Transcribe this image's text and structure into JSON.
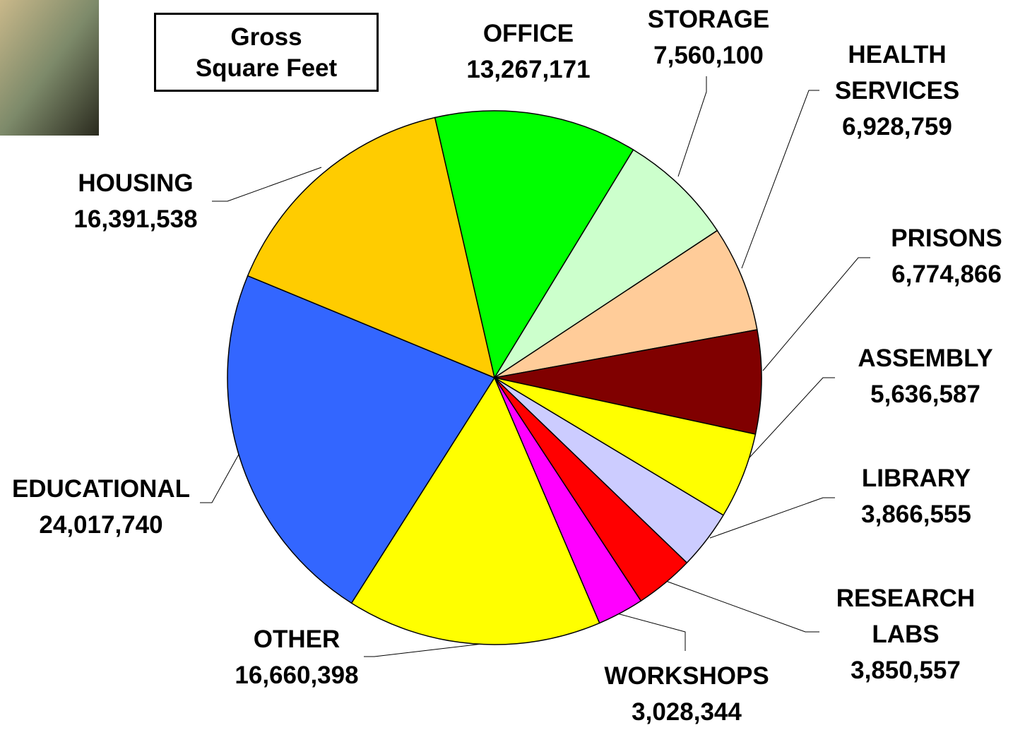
{
  "chart_data": {
    "type": "pie",
    "title": "Gross Square Feet",
    "categories": [
      "OFFICE",
      "STORAGE",
      "HEALTH SERVICES",
      "PRISONS",
      "ASSEMBLY",
      "LIBRARY",
      "RESEARCH LABS",
      "WORKSHOPS",
      "OTHER",
      "EDUCATIONAL",
      "HOUSING"
    ],
    "values": [
      13267171,
      7560100,
      6928759,
      6774866,
      5636587,
      3866555,
      3850557,
      3028344,
      16660398,
      24017740,
      16391538
    ],
    "value_labels": [
      "13,267,171",
      "7,560,100",
      "6,928,759",
      "6,774,866",
      "5,636,587",
      "3,866,555",
      "3,850,557",
      "3,028,344",
      "16,660,398",
      "24,017,740",
      "16,391,538"
    ],
    "colors": [
      "#00ff00",
      "#ccffcc",
      "#ffcc99",
      "#800000",
      "#ffff00",
      "#ccccff",
      "#ff0000",
      "#ff00ff",
      "#ffff00",
      "#3366ff",
      "#ffcc00"
    ]
  }
}
